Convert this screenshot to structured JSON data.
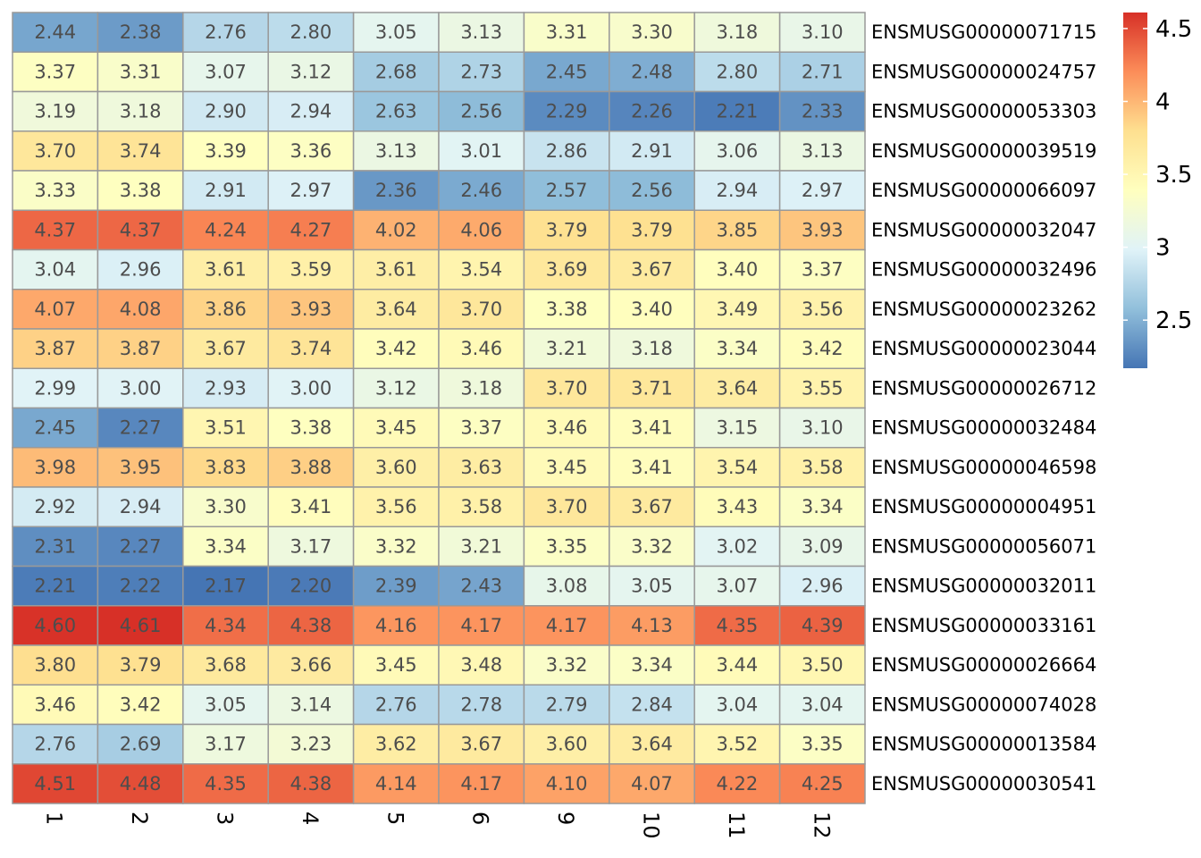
{
  "chart_data": {
    "type": "heatmap",
    "columns": [
      "1",
      "2",
      "3",
      "4",
      "5",
      "6",
      "9",
      "10",
      "11",
      "12"
    ],
    "rows": [
      "ENSMUSG00000071715",
      "ENSMUSG00000024757",
      "ENSMUSG00000053303",
      "ENSMUSG00000039519",
      "ENSMUSG00000066097",
      "ENSMUSG00000032047",
      "ENSMUSG00000032496",
      "ENSMUSG00000023262",
      "ENSMUSG00000023044",
      "ENSMUSG00000026712",
      "ENSMUSG00000032484",
      "ENSMUSG00000046598",
      "ENSMUSG00000004951",
      "ENSMUSG00000056071",
      "ENSMUSG00000032011",
      "ENSMUSG00000033161",
      "ENSMUSG00000026664",
      "ENSMUSG00000074028",
      "ENSMUSG00000013584",
      "ENSMUSG00000030541"
    ],
    "values": [
      [
        2.44,
        2.38,
        2.76,
        2.8,
        3.05,
        3.13,
        3.31,
        3.3,
        3.18,
        3.1
      ],
      [
        3.37,
        3.31,
        3.07,
        3.12,
        2.68,
        2.73,
        2.45,
        2.48,
        2.8,
        2.71
      ],
      [
        3.19,
        3.18,
        2.9,
        2.94,
        2.63,
        2.56,
        2.29,
        2.26,
        2.21,
        2.33
      ],
      [
        3.7,
        3.74,
        3.39,
        3.36,
        3.13,
        3.01,
        2.86,
        2.91,
        3.06,
        3.13
      ],
      [
        3.33,
        3.38,
        2.91,
        2.97,
        2.36,
        2.46,
        2.57,
        2.56,
        2.94,
        2.97
      ],
      [
        4.37,
        4.37,
        4.24,
        4.27,
        4.02,
        4.06,
        3.79,
        3.79,
        3.85,
        3.93
      ],
      [
        3.04,
        2.96,
        3.61,
        3.59,
        3.61,
        3.54,
        3.69,
        3.67,
        3.4,
        3.37
      ],
      [
        4.07,
        4.08,
        3.86,
        3.93,
        3.64,
        3.7,
        3.38,
        3.4,
        3.49,
        3.56
      ],
      [
        3.87,
        3.87,
        3.67,
        3.74,
        3.42,
        3.46,
        3.21,
        3.18,
        3.34,
        3.42
      ],
      [
        2.99,
        3.0,
        2.93,
        3.0,
        3.12,
        3.18,
        3.7,
        3.71,
        3.64,
        3.55
      ],
      [
        2.45,
        2.27,
        3.51,
        3.38,
        3.45,
        3.37,
        3.46,
        3.41,
        3.15,
        3.1
      ],
      [
        3.98,
        3.95,
        3.83,
        3.88,
        3.6,
        3.63,
        3.45,
        3.41,
        3.54,
        3.58
      ],
      [
        2.92,
        2.94,
        3.3,
        3.41,
        3.56,
        3.58,
        3.7,
        3.67,
        3.43,
        3.34
      ],
      [
        2.31,
        2.27,
        3.34,
        3.17,
        3.32,
        3.21,
        3.35,
        3.32,
        3.02,
        3.09
      ],
      [
        2.21,
        2.22,
        2.17,
        2.2,
        2.39,
        2.43,
        3.08,
        3.05,
        3.07,
        2.96
      ],
      [
        4.6,
        4.61,
        4.34,
        4.38,
        4.16,
        4.17,
        4.17,
        4.13,
        4.35,
        4.39
      ],
      [
        3.8,
        3.79,
        3.68,
        3.66,
        3.45,
        3.48,
        3.32,
        3.34,
        3.44,
        3.5
      ],
      [
        3.46,
        3.42,
        3.05,
        3.14,
        2.76,
        2.78,
        2.79,
        2.84,
        3.04,
        3.04
      ],
      [
        2.76,
        2.69,
        3.17,
        3.23,
        3.62,
        3.67,
        3.6,
        3.64,
        3.52,
        3.35
      ],
      [
        4.51,
        4.48,
        4.35,
        4.38,
        4.14,
        4.17,
        4.1,
        4.07,
        4.22,
        4.25
      ]
    ],
    "value_format_decimals": 2,
    "color_scale": {
      "domain": [
        2.17,
        4.61
      ],
      "colors": [
        "#4575b4",
        "#91bfdb",
        "#e0f3f8",
        "#ffffbf",
        "#fee090",
        "#fc8d59",
        "#d73027"
      ]
    },
    "legend": {
      "ticks": [
        2.5,
        3,
        3.5,
        4,
        4.5
      ],
      "tick_labels": [
        "2.5",
        "3",
        "3.5",
        "4",
        "4.5"
      ],
      "placement": "right"
    },
    "cell_border_color": "#999999",
    "grid": false
  }
}
